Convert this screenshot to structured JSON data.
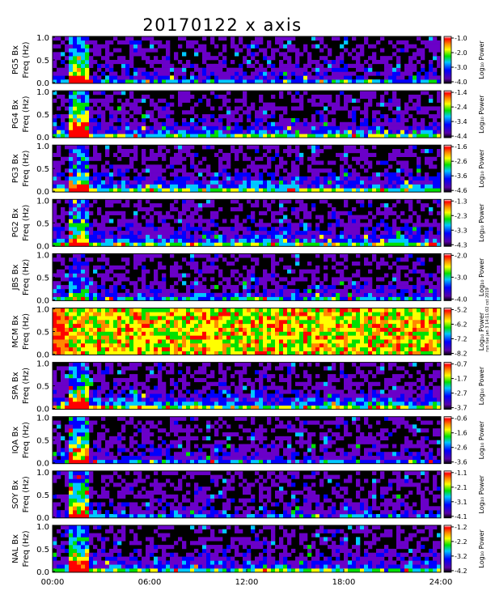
{
  "title": "20170122 x axis",
  "side_note": "run tue jan 3 14:11:02 cst 2019",
  "chart_data": {
    "type": "heatmap",
    "x_axis": {
      "range_hours": [
        0,
        24
      ],
      "ticks": [
        "00:00",
        "06:00",
        "12:00",
        "18:00",
        "24:00"
      ]
    },
    "y_axis": {
      "label": "Freq (Hz)",
      "range": [
        0.0,
        1.0
      ],
      "ticks": [
        "0.0",
        "0.5",
        "1.0"
      ]
    },
    "colorbar_label": "Log₁₀ Power",
    "colormap": [
      "#ffffff",
      "#ff0000",
      "#ff8800",
      "#ffff00",
      "#00e000",
      "#00c8ff",
      "#0000ff",
      "#6a00c8",
      "#000000"
    ],
    "panels": [
      {
        "station": "PG5",
        "component": "Bx",
        "cbar_ticks": [
          "-1.0",
          "-2.0",
          "-3.0",
          "-4.0"
        ],
        "activity": 0.35,
        "event": 1.0
      },
      {
        "station": "PG4",
        "component": "Bx",
        "cbar_ticks": [
          "-1.4",
          "-2.4",
          "-3.4",
          "-4.4"
        ],
        "activity": 0.55,
        "event": 1.0
      },
      {
        "station": "PG3",
        "component": "Bx",
        "cbar_ticks": [
          "-1.6",
          "-2.6",
          "-3.6",
          "-4.6"
        ],
        "activity": 0.6,
        "event": 0.7
      },
      {
        "station": "PG2",
        "component": "Bx",
        "cbar_ticks": [
          "-1.3",
          "-2.3",
          "-3.3",
          "-4.3"
        ],
        "activity": 0.6,
        "event": 0.7
      },
      {
        "station": "JBS",
        "component": "Bx",
        "cbar_ticks": [
          "-2.0",
          "-3.0",
          "-4.0"
        ],
        "activity": 0.4,
        "event": 0.5
      },
      {
        "station": "MCM",
        "component": "Bx",
        "cbar_ticks": [
          "-5.2",
          "-6.2",
          "-7.2",
          "-8.2"
        ],
        "activity": 1.0,
        "event": 0.0
      },
      {
        "station": "SPA",
        "component": "Bx",
        "cbar_ticks": [
          "-0.7",
          "-1.7",
          "-2.7",
          "-3.7"
        ],
        "activity": 0.65,
        "event": 0.9
      },
      {
        "station": "IQA",
        "component": "Bx",
        "cbar_ticks": [
          "-0.6",
          "-1.6",
          "-2.6",
          "-3.6"
        ],
        "activity": 0.35,
        "event": 1.0
      },
      {
        "station": "SOY",
        "component": "Bx",
        "cbar_ticks": [
          "-1.1",
          "-2.1",
          "-3.1",
          "-4.1"
        ],
        "activity": 0.3,
        "event": 1.0
      },
      {
        "station": "NAL",
        "component": "Bx",
        "cbar_ticks": [
          "-1.2",
          "-2.2",
          "-3.2",
          "-4.2"
        ],
        "activity": 0.55,
        "event": 1.0
      }
    ]
  }
}
